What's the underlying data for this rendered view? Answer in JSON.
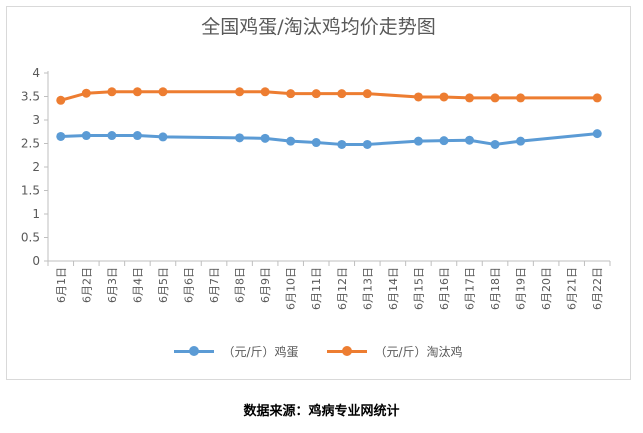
{
  "chart_data": {
    "type": "line",
    "title": "全国鸡蛋/淘汰鸡均价走势图",
    "categories": [
      "6月1日",
      "6月2日",
      "6月3日",
      "6月4日",
      "6月5日",
      "6月6日",
      "6月7日",
      "6月8日",
      "6月9日",
      "6月10日",
      "6月11日",
      "6月12日",
      "6月13日",
      "6月14日",
      "6月15日",
      "6月16日",
      "6月17日",
      "6月18日",
      "6月19日",
      "6月20日",
      "6月21日",
      "6月22日"
    ],
    "ylim": [
      0,
      4
    ],
    "yticks": [
      "0",
      "0.5",
      "1",
      "1.5",
      "2",
      "2.5",
      "3",
      "3.5",
      "4"
    ],
    "grid": false,
    "legend_position": "bottom",
    "series": [
      {
        "name": "（元/斤）鸡蛋",
        "color": "#5b9bd5",
        "values": [
          2.65,
          2.67,
          2.67,
          2.67,
          2.64,
          null,
          null,
          2.62,
          2.61,
          2.55,
          2.52,
          2.48,
          2.48,
          null,
          2.55,
          2.56,
          2.57,
          2.48,
          2.55,
          null,
          null,
          2.71
        ]
      },
      {
        "name": "（元/斤）淘汰鸡",
        "color": "#ed7d31",
        "values": [
          3.42,
          3.57,
          3.6,
          3.6,
          3.6,
          null,
          null,
          3.6,
          3.6,
          3.56,
          3.56,
          3.56,
          3.56,
          null,
          3.49,
          3.49,
          3.47,
          3.47,
          3.47,
          null,
          null,
          3.47
        ]
      }
    ]
  },
  "source_text": "数据来源：鸡病专业网统计"
}
